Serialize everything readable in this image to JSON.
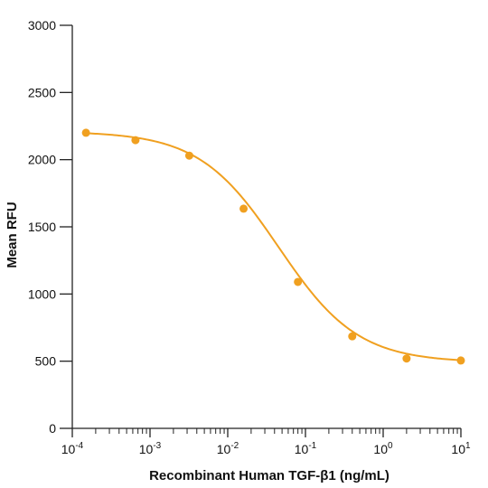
{
  "chart_data": {
    "type": "scatter",
    "title": "",
    "xlabel": "Recombinant Human TGF-β1 (ng/mL)",
    "ylabel": "Mean RFU",
    "x_scale": "log",
    "xlim": [
      0.0001,
      10
    ],
    "ylim": [
      0,
      3000
    ],
    "x_ticks": [
      {
        "value": 0.0001,
        "base": "10",
        "exp": "-4"
      },
      {
        "value": 0.001,
        "base": "10",
        "exp": "-3"
      },
      {
        "value": 0.01,
        "base": "10",
        "exp": "-2"
      },
      {
        "value": 0.1,
        "base": "10",
        "exp": "-1"
      },
      {
        "value": 1,
        "base": "10",
        "exp": "0"
      },
      {
        "value": 10,
        "base": "10",
        "exp": "1"
      }
    ],
    "y_ticks": [
      0,
      500,
      1000,
      1500,
      2000,
      2500,
      3000
    ],
    "grid": false,
    "color": "#F0A020",
    "points": [
      {
        "x": 0.00015,
        "y": 2200
      },
      {
        "x": 0.00065,
        "y": 2145
      },
      {
        "x": 0.0032,
        "y": 2030
      },
      {
        "x": 0.016,
        "y": 1635
      },
      {
        "x": 0.08,
        "y": 1090
      },
      {
        "x": 0.4,
        "y": 685
      },
      {
        "x": 2,
        "y": 520
      },
      {
        "x": 10,
        "y": 505
      }
    ],
    "fit_curve": {
      "type": "4PL",
      "top": 2210,
      "bottom": 490,
      "ec50": 0.045,
      "hill": 0.85
    }
  }
}
